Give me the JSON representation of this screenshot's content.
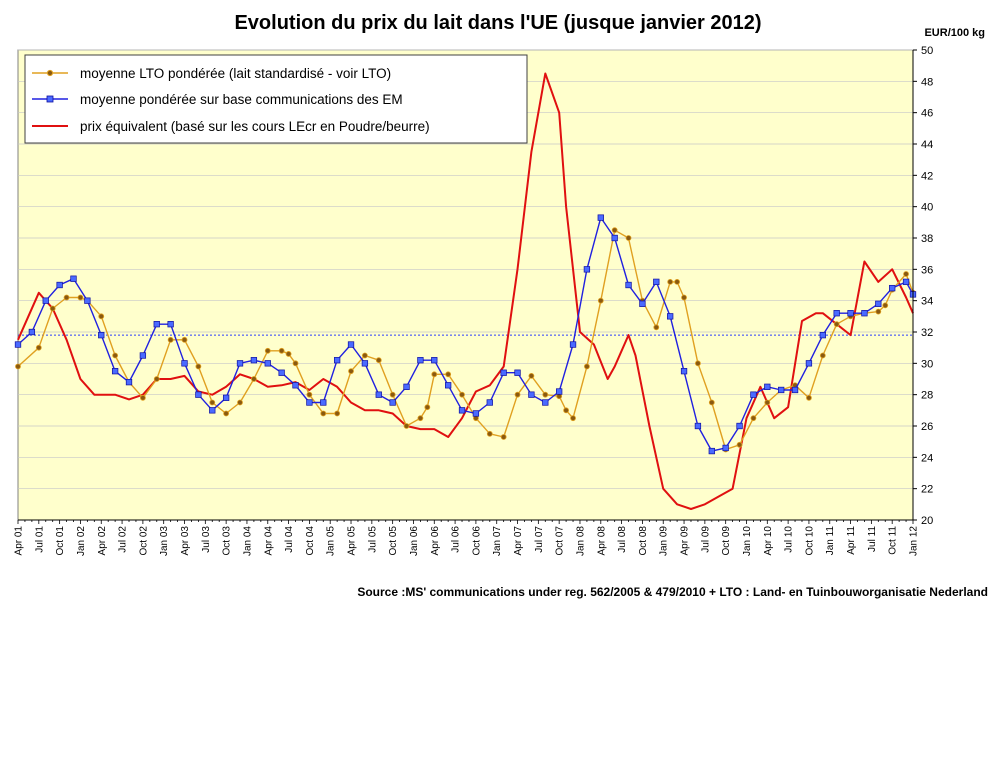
{
  "chart_data": {
    "type": "line",
    "title": "Evolution du prix du lait dans l'UE (jusque janvier 2012)",
    "ylabel": "EUR/100 kg",
    "ylim": [
      20,
      50
    ],
    "y_ticks": [
      "20",
      "22",
      "24",
      "26",
      "28",
      "30",
      "32",
      "34",
      "36",
      "38",
      "40",
      "42",
      "44",
      "46",
      "48",
      "50"
    ],
    "x_labels": [
      "Apr 01",
      "Jul 01",
      "Oct 01",
      "Jan 02",
      "Apr 02",
      "Jul 02",
      "Oct 02",
      "Jan 03",
      "Apr 03",
      "Jul 03",
      "Oct 03",
      "Jan 04",
      "Apr 04",
      "Jul 04",
      "Oct 04",
      "Jan 05",
      "Apr 05",
      "Jul 05",
      "Oct 05",
      "Jan 06",
      "Apr 06",
      "Jul 06",
      "Oct 06",
      "Jan 07",
      "Apr 07",
      "Jul 07",
      "Oct 07",
      "Jan 08",
      "Apr 08",
      "Jul 08",
      "Oct 08",
      "Jan 09",
      "Apr 09",
      "Jul 09",
      "Oct 09",
      "Jan 10",
      "Apr 10",
      "Jul 10",
      "Oct 10",
      "Jan 11",
      "Apr 11",
      "Jul 11",
      "Oct 11",
      "Jan 12"
    ],
    "x_range_months": [
      0,
      129
    ],
    "reference_line": {
      "value": 31.8,
      "style": "dotted",
      "color": "#2a3cff"
    },
    "series": [
      {
        "name": "moyenne LTO pondérée (lait standardisé - voir LTO)",
        "color": "#e0a020",
        "marker": "circle",
        "marker_color": "#8a5a10",
        "x": [
          0,
          3,
          5,
          7,
          9,
          10,
          12,
          14,
          16,
          18,
          20,
          22,
          24,
          26,
          28,
          30,
          32,
          34,
          36,
          38,
          39,
          40,
          42,
          44,
          46,
          48,
          50,
          52,
          54,
          56,
          58,
          59,
          60,
          62,
          64,
          66,
          68,
          70,
          72,
          74,
          76,
          78,
          79,
          80,
          82,
          84,
          86,
          88,
          90,
          92,
          94,
          95,
          96,
          98,
          100,
          102,
          104,
          106,
          108,
          110,
          112,
          114,
          116,
          118,
          120,
          122,
          124,
          125,
          126,
          128,
          129
        ],
        "values": [
          29.8,
          31.0,
          33.5,
          34.2,
          34.2,
          34.0,
          33.0,
          30.5,
          28.8,
          27.8,
          29.0,
          31.5,
          31.5,
          29.8,
          27.5,
          26.8,
          27.5,
          29.0,
          30.8,
          30.8,
          30.6,
          30.0,
          28.0,
          26.8,
          26.8,
          29.5,
          30.5,
          30.2,
          28.0,
          26.0,
          26.5,
          27.2,
          29.3,
          29.3,
          28.0,
          26.5,
          25.5,
          25.3,
          28.0,
          29.2,
          28.0,
          27.9,
          27.0,
          26.5,
          29.8,
          34.0,
          38.5,
          38.0,
          34.0,
          32.3,
          35.2,
          35.2,
          34.2,
          30.0,
          27.5,
          24.5,
          24.8,
          26.5,
          27.5,
          28.3,
          28.6,
          27.8,
          30.5,
          32.5,
          33.0,
          33.2,
          33.3,
          33.7,
          34.7,
          35.7,
          34.5
        ]
      },
      {
        "name": "moyenne pondérée sur base communications des EM",
        "color": "#2020e0",
        "marker": "square",
        "marker_color": "#4a6aff",
        "x": [
          0,
          2,
          4,
          6,
          8,
          10,
          12,
          14,
          16,
          18,
          20,
          22,
          24,
          26,
          28,
          30,
          32,
          34,
          36,
          38,
          40,
          42,
          44,
          46,
          48,
          50,
          52,
          54,
          56,
          58,
          60,
          62,
          64,
          66,
          68,
          70,
          72,
          74,
          76,
          78,
          80,
          82,
          84,
          86,
          88,
          90,
          92,
          94,
          96,
          98,
          100,
          102,
          104,
          106,
          108,
          110,
          112,
          114,
          116,
          118,
          120,
          122,
          124,
          126,
          128,
          129
        ],
        "values": [
          31.2,
          32.0,
          34.0,
          35.0,
          35.4,
          34.0,
          31.8,
          29.5,
          28.8,
          30.5,
          32.5,
          32.5,
          30.0,
          28.0,
          27.0,
          27.8,
          30.0,
          30.2,
          30.0,
          29.4,
          28.6,
          27.5,
          27.5,
          30.2,
          31.2,
          30.0,
          28.0,
          27.5,
          28.5,
          30.2,
          30.2,
          28.6,
          27.0,
          26.8,
          27.5,
          29.4,
          29.4,
          28.0,
          27.5,
          28.2,
          31.2,
          36.0,
          39.3,
          38.0,
          35.0,
          33.8,
          35.2,
          33.0,
          29.5,
          26.0,
          24.4,
          24.6,
          26.0,
          28.0,
          28.5,
          28.3,
          28.3,
          30.0,
          31.8,
          33.2,
          33.2,
          33.2,
          33.8,
          34.8,
          35.2,
          34.4
        ]
      },
      {
        "name": "prix équivalent (basé sur les cours LEcr en Poudre/beurre)",
        "color": "#e01010",
        "marker": "none",
        "x": [
          0,
          3,
          5,
          7,
          9,
          11,
          14,
          16,
          18,
          20,
          22,
          24,
          26,
          28,
          30,
          32,
          34,
          36,
          38,
          40,
          42,
          44,
          46,
          48,
          50,
          52,
          54,
          56,
          58,
          60,
          62,
          64,
          66,
          68,
          70,
          72,
          74,
          76,
          78,
          79,
          81,
          83,
          85,
          86,
          87,
          88,
          89,
          91,
          93,
          95,
          97,
          99,
          101,
          103,
          105,
          107,
          109,
          111,
          113,
          115,
          116,
          118,
          120,
          122,
          124,
          126,
          128,
          129
        ],
        "values": [
          31.5,
          34.5,
          33.5,
          31.5,
          29.0,
          28.0,
          28.0,
          27.7,
          28.0,
          29.0,
          29.0,
          29.2,
          28.2,
          28.0,
          28.5,
          29.3,
          29.0,
          28.5,
          28.6,
          28.8,
          28.3,
          29.0,
          28.5,
          27.5,
          27.0,
          27.0,
          26.8,
          26.0,
          25.8,
          25.8,
          25.3,
          26.5,
          28.2,
          28.6,
          29.8,
          36.0,
          43.5,
          48.5,
          46.0,
          40.0,
          32.0,
          31.2,
          29.0,
          29.8,
          30.8,
          31.8,
          30.5,
          26.0,
          22.0,
          21.0,
          20.7,
          21.0,
          21.5,
          22.0,
          26.5,
          28.5,
          26.5,
          27.2,
          32.7,
          33.2,
          33.2,
          32.5,
          31.8,
          36.5,
          35.2,
          36.0,
          34.2,
          33.2
        ]
      }
    ],
    "legend_position": "top-left",
    "source": "Source :MS' communications under reg. 562/2005 & 479/2010 + LTO : Land- en Tuinbouworganisatie Nederland"
  }
}
